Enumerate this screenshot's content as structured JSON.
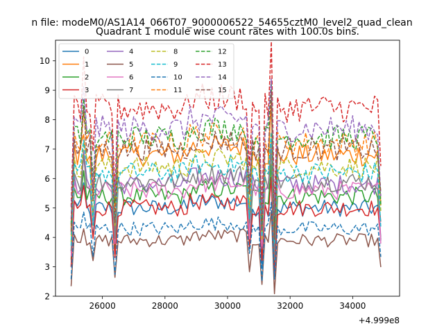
{
  "suptitle": "n file: modeM0/AS1A14_066T07_9000006522_54655cztM0_level2_quad_clean",
  "chart_data": {
    "type": "line",
    "title": "Quadrant 1 module wise count rates with 100.0s bins.",
    "xlabel": "",
    "ylabel": "",
    "offset_label": "+4.999e8",
    "xlim": [
      24500,
      35500
    ],
    "ylim": [
      2,
      10.7
    ],
    "xticks": [
      26000,
      28000,
      30000,
      32000,
      34000
    ],
    "xtick_labels": [
      "26000",
      "28000",
      "30000",
      "32000",
      "34000"
    ],
    "yticks": [
      2,
      3,
      4,
      5,
      6,
      7,
      8,
      9,
      10
    ],
    "ytick_labels": [
      "2",
      "3",
      "4",
      "5",
      "6",
      "7",
      "8",
      "9",
      "10"
    ],
    "x_start": 25000,
    "x_step": 100,
    "n_points": 100,
    "dips": [
      {
        "x": 25700,
        "depth": 1.4
      },
      {
        "x": 26400,
        "depth": 1.9
      },
      {
        "x": 30700,
        "depth": 1.5
      },
      {
        "x": 31100,
        "depth": 2.2
      },
      {
        "x": 31500,
        "depth": 2.6
      },
      {
        "x": 34950,
        "depth": 1.6
      }
    ],
    "spikes": [
      {
        "x": 25400,
        "height": 0.9
      },
      {
        "x": 31400,
        "height": 1.4
      }
    ],
    "legend": {
      "position": "top-left",
      "columns": 4
    },
    "series": [
      {
        "name": "0",
        "color": "#1f77b4",
        "dash": false,
        "base": 5.0
      },
      {
        "name": "1",
        "color": "#ff7f0e",
        "dash": false,
        "base": 6.8
      },
      {
        "name": "2",
        "color": "#2ca02c",
        "dash": false,
        "base": 5.4
      },
      {
        "name": "3",
        "color": "#d62728",
        "dash": false,
        "base": 5.0
      },
      {
        "name": "4",
        "color": "#9467bd",
        "dash": false,
        "base": 5.8
      },
      {
        "name": "5",
        "color": "#8c564b",
        "dash": false,
        "base": 3.9
      },
      {
        "name": "6",
        "color": "#e377c2",
        "dash": false,
        "base": 5.6
      },
      {
        "name": "7",
        "color": "#7f7f7f",
        "dash": false,
        "base": 5.9
      },
      {
        "name": "8",
        "color": "#bcbd22",
        "dash": true,
        "base": 6.4
      },
      {
        "name": "9",
        "color": "#17becf",
        "dash": true,
        "base": 6.2
      },
      {
        "name": "10",
        "color": "#1f77b4",
        "dash": true,
        "base": 4.3
      },
      {
        "name": "11",
        "color": "#ff7f0e",
        "dash": true,
        "base": 7.2
      },
      {
        "name": "12",
        "color": "#2ca02c",
        "dash": true,
        "base": 7.4
      },
      {
        "name": "13",
        "color": "#d62728",
        "dash": true,
        "base": 8.4
      },
      {
        "name": "14",
        "color": "#9467bd",
        "dash": true,
        "base": 7.7
      },
      {
        "name": "15",
        "color": "#8c564b",
        "dash": true,
        "base": 7.0
      }
    ]
  }
}
